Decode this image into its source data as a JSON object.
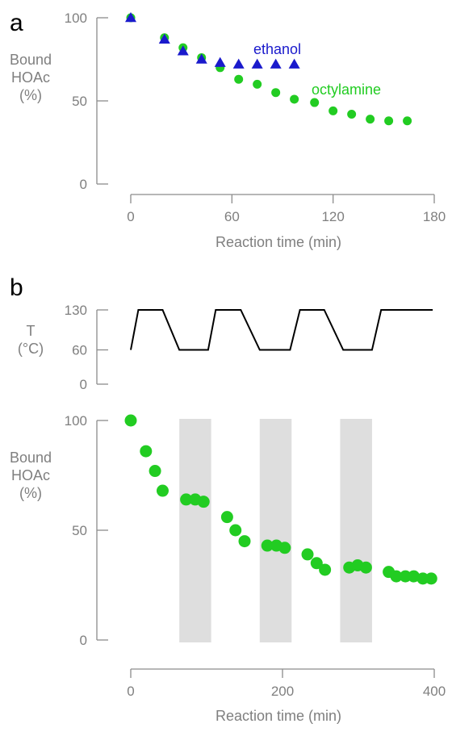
{
  "chart_data": [
    {
      "panel": "a",
      "type": "scatter",
      "xlabel": "Reaction time (min)",
      "ylabel": [
        "Bound",
        "HOAc",
        "(%)"
      ],
      "xlim": [
        0,
        180
      ],
      "ylim": [
        0,
        100
      ],
      "xticks": [
        0,
        60,
        120,
        180
      ],
      "yticks": [
        0,
        50,
        100
      ],
      "series": [
        {
          "name": "octylamine",
          "color": "#22cc22",
          "marker": "circle",
          "x": [
            0,
            20,
            31,
            42,
            53,
            64,
            75,
            86,
            97,
            109,
            120,
            131,
            142,
            153,
            164
          ],
          "y": [
            100,
            88,
            82,
            76,
            70,
            63,
            60,
            55,
            51,
            49,
            44,
            42,
            39,
            38,
            38
          ]
        },
        {
          "name": "ethanol",
          "color": "#1a1acc",
          "marker": "triangle",
          "x": [
            0,
            20,
            31,
            42,
            53,
            64,
            75,
            86,
            97
          ],
          "y": [
            100,
            87,
            80,
            75,
            73,
            72,
            72,
            72,
            72
          ]
        }
      ]
    },
    {
      "panel": "b",
      "type": "line",
      "ylabel": [
        "T",
        "(°C)"
      ],
      "xlim": [
        0,
        400
      ],
      "ylim": [
        0,
        130
      ],
      "yticks": [
        0,
        60,
        130
      ],
      "series": [
        {
          "color": "#000000",
          "x": [
            0,
            10,
            42,
            64,
            102,
            112,
            145,
            170,
            210,
            223,
            255,
            280,
            318,
            330,
            398
          ],
          "y": [
            60,
            130,
            130,
            60,
            60,
            130,
            130,
            60,
            60,
            130,
            130,
            60,
            60,
            130,
            130
          ]
        }
      ]
    },
    {
      "panel": "b",
      "type": "scatter",
      "xlabel": "Reaction time (min)",
      "ylabel": [
        "Bound",
        "HOAc",
        "(%)"
      ],
      "xlim": [
        0,
        400
      ],
      "ylim": [
        0,
        100
      ],
      "xticks": [
        0,
        200,
        400
      ],
      "yticks": [
        0,
        50,
        100
      ],
      "shaded_intervals": [
        [
          64,
          106
        ],
        [
          170,
          212
        ],
        [
          276,
          318
        ]
      ],
      "shade_color": "#dedede",
      "series": [
        {
          "color": "#22cc22",
          "marker": "circle",
          "x": [
            0,
            20,
            32,
            42,
            73,
            85,
            96,
            127,
            138,
            150,
            180,
            192,
            203,
            233,
            245,
            256,
            288,
            299,
            310,
            340,
            350,
            362,
            373,
            385,
            396
          ],
          "y": [
            100,
            86,
            77,
            68,
            64,
            64,
            63,
            56,
            50,
            45,
            43,
            43,
            42,
            39,
            35,
            32,
            33,
            34,
            33,
            31,
            29,
            29,
            29,
            28,
            28
          ]
        }
      ]
    }
  ]
}
